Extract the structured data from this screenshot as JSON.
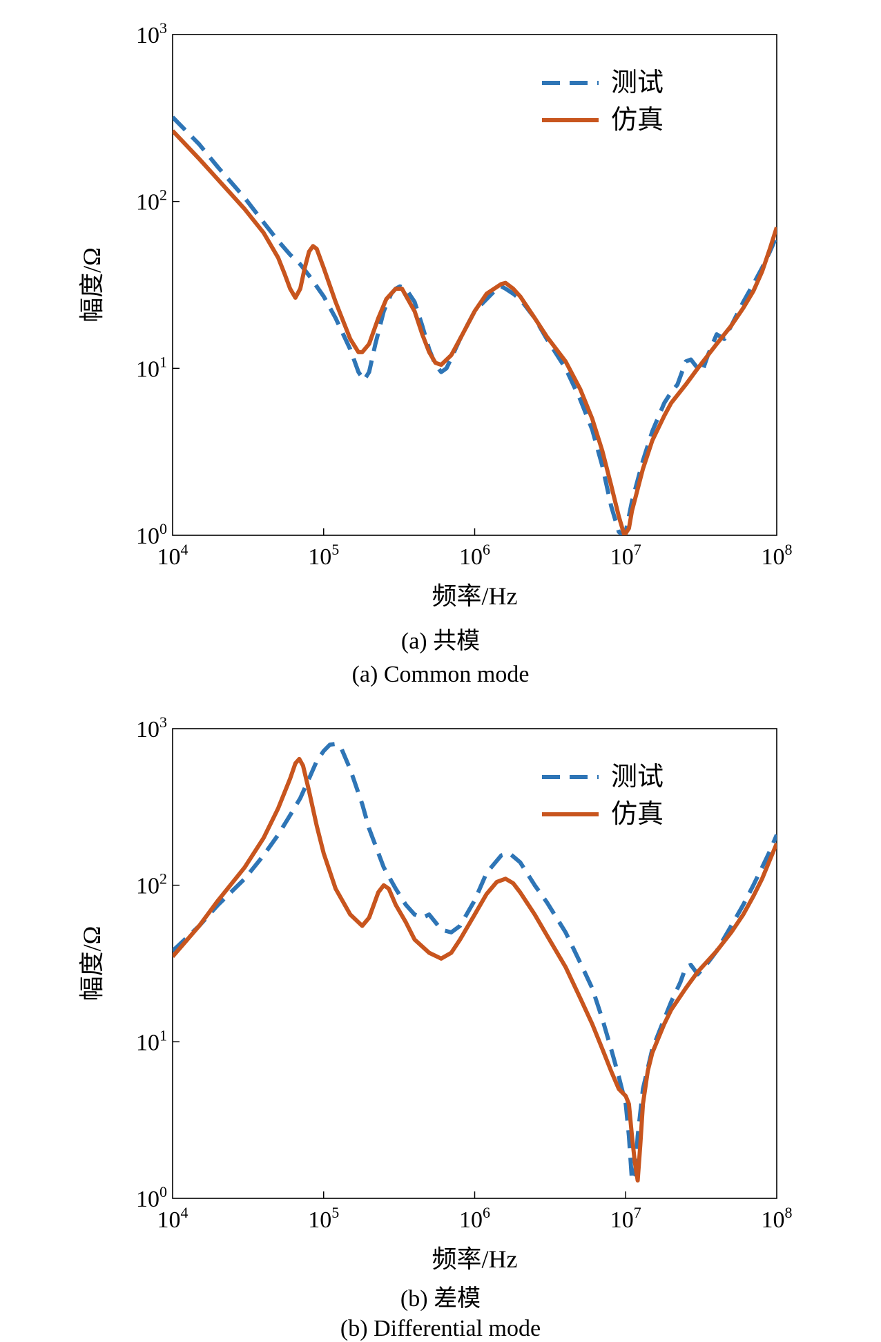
{
  "figure": {
    "panels": [
      {
        "caption_cn": "(a) 共模",
        "caption_en": "(a) Common mode"
      },
      {
        "caption_cn": "(b) 差模",
        "caption_en": "(b) Differential mode"
      }
    ]
  },
  "chart_data": [
    {
      "type": "line",
      "title": "",
      "xlabel": "频率/Hz",
      "ylabel": "幅度/Ω",
      "xscale": "log",
      "yscale": "log",
      "xlim": [
        10000,
        100000000
      ],
      "ylim": [
        1,
        1000
      ],
      "x_ticks": [
        {
          "base": "10",
          "exp": "4"
        },
        {
          "base": "10",
          "exp": "5"
        },
        {
          "base": "10",
          "exp": "6"
        },
        {
          "base": "10",
          "exp": "7"
        },
        {
          "base": "10",
          "exp": "8"
        }
      ],
      "y_ticks": [
        {
          "base": "10",
          "exp": "0"
        },
        {
          "base": "10",
          "exp": "1"
        },
        {
          "base": "10",
          "exp": "2"
        },
        {
          "base": "10",
          "exp": "3"
        }
      ],
      "grid": false,
      "legend_position": "top-right",
      "series": [
        {
          "name": "测试",
          "color": "#2e75b6",
          "style": "dashed",
          "points": [
            [
              10000,
              320
            ],
            [
              15000,
              220
            ],
            [
              20000,
              160
            ],
            [
              30000,
              105
            ],
            [
              40000,
              75
            ],
            [
              50000,
              58
            ],
            [
              60000,
              48
            ],
            [
              70000,
              42
            ],
            [
              80000,
              36
            ],
            [
              100000,
              27
            ],
            [
              120000,
              20
            ],
            [
              150000,
              13
            ],
            [
              170000,
              9.5
            ],
            [
              185000,
              8.5
            ],
            [
              200000,
              9.5
            ],
            [
              220000,
              14
            ],
            [
              250000,
              22
            ],
            [
              280000,
              28
            ],
            [
              300000,
              30
            ],
            [
              320000,
              31
            ],
            [
              350000,
              30
            ],
            [
              400000,
              25
            ],
            [
              450000,
              18
            ],
            [
              500000,
              13
            ],
            [
              550000,
              10.5
            ],
            [
              600000,
              9.5
            ],
            [
              650000,
              10
            ],
            [
              700000,
              11.5
            ],
            [
              800000,
              15
            ],
            [
              1000000,
              22
            ],
            [
              1200000,
              26
            ],
            [
              1400000,
              30
            ],
            [
              1500000,
              31
            ],
            [
              1600000,
              30
            ],
            [
              1800000,
              28
            ],
            [
              2000000,
              26
            ],
            [
              2500000,
              20
            ],
            [
              3000000,
              15
            ],
            [
              4000000,
              10
            ],
            [
              5000000,
              6.5
            ],
            [
              6000000,
              4.3
            ],
            [
              7000000,
              2.6
            ],
            [
              8000000,
              1.5
            ],
            [
              9000000,
              1.05
            ],
            [
              9600000,
              1.0
            ],
            [
              10000000,
              1.05
            ],
            [
              11000000,
              1.6
            ],
            [
              13000000,
              2.8
            ],
            [
              15000000,
              4.2
            ],
            [
              18000000,
              6.2
            ],
            [
              20000000,
              7.2
            ],
            [
              22000000,
              8
            ],
            [
              25000000,
              11
            ],
            [
              27000000,
              11.3
            ],
            [
              30000000,
              10
            ],
            [
              32000000,
              9.5
            ],
            [
              35000000,
              12
            ],
            [
              40000000,
              16
            ],
            [
              45000000,
              15
            ],
            [
              50000000,
              18
            ],
            [
              60000000,
              25
            ],
            [
              70000000,
              32
            ],
            [
              80000000,
              40
            ],
            [
              90000000,
              50
            ],
            [
              100000000,
              62
            ]
          ]
        },
        {
          "name": "仿真",
          "color": "#c8551e",
          "style": "solid",
          "points": [
            [
              10000,
              265
            ],
            [
              15000,
              180
            ],
            [
              20000,
              135
            ],
            [
              30000,
              90
            ],
            [
              40000,
              65
            ],
            [
              50000,
              46
            ],
            [
              55000,
              37
            ],
            [
              60000,
              30
            ],
            [
              65000,
              26.5
            ],
            [
              70000,
              30
            ],
            [
              75000,
              40
            ],
            [
              80000,
              50
            ],
            [
              85000,
              54
            ],
            [
              90000,
              52
            ],
            [
              100000,
              40
            ],
            [
              120000,
              25
            ],
            [
              150000,
              15
            ],
            [
              170000,
              12.5
            ],
            [
              180000,
              12.5
            ],
            [
              200000,
              14
            ],
            [
              230000,
              20
            ],
            [
              260000,
              26
            ],
            [
              300000,
              30
            ],
            [
              330000,
              30
            ],
            [
              400000,
              22
            ],
            [
              450000,
              16
            ],
            [
              500000,
              12.5
            ],
            [
              550000,
              10.8
            ],
            [
              600000,
              10.5
            ],
            [
              700000,
              12
            ],
            [
              800000,
              15
            ],
            [
              1000000,
              22
            ],
            [
              1200000,
              28
            ],
            [
              1500000,
              32
            ],
            [
              1600000,
              32.5
            ],
            [
              1800000,
              30
            ],
            [
              2000000,
              27
            ],
            [
              2500000,
              20
            ],
            [
              3000000,
              15.5
            ],
            [
              4000000,
              11
            ],
            [
              5000000,
              7.5
            ],
            [
              6000000,
              5
            ],
            [
              7000000,
              3.2
            ],
            [
              8000000,
              2
            ],
            [
              9000000,
              1.3
            ],
            [
              9800000,
              1.0
            ],
            [
              10500000,
              1.1
            ],
            [
              11000000,
              1.4
            ],
            [
              13000000,
              2.5
            ],
            [
              15000000,
              3.7
            ],
            [
              18000000,
              5.2
            ],
            [
              20000000,
              6.2
            ],
            [
              25000000,
              8
            ],
            [
              30000000,
              10
            ],
            [
              40000000,
              14
            ],
            [
              50000000,
              18
            ],
            [
              60000000,
              23
            ],
            [
              70000000,
              29
            ],
            [
              80000000,
              38
            ],
            [
              90000000,
              52
            ],
            [
              100000000,
              70
            ]
          ]
        }
      ]
    },
    {
      "type": "line",
      "title": "",
      "xlabel": "频率/Hz",
      "ylabel": "幅度/Ω",
      "xscale": "log",
      "yscale": "log",
      "xlim": [
        10000,
        100000000
      ],
      "ylim": [
        1,
        1000
      ],
      "x_ticks": [
        {
          "base": "10",
          "exp": "4"
        },
        {
          "base": "10",
          "exp": "5"
        },
        {
          "base": "10",
          "exp": "6"
        },
        {
          "base": "10",
          "exp": "7"
        },
        {
          "base": "10",
          "exp": "8"
        }
      ],
      "y_ticks": [
        {
          "base": "10",
          "exp": "0"
        },
        {
          "base": "10",
          "exp": "1"
        },
        {
          "base": "10",
          "exp": "2"
        },
        {
          "base": "10",
          "exp": "3"
        }
      ],
      "grid": false,
      "legend_position": "top-right",
      "series": [
        {
          "name": "测试",
          "color": "#2e75b6",
          "style": "dashed",
          "points": [
            [
              10000,
              38
            ],
            [
              15000,
              55
            ],
            [
              20000,
              75
            ],
            [
              30000,
              110
            ],
            [
              40000,
              155
            ],
            [
              50000,
              210
            ],
            [
              60000,
              280
            ],
            [
              70000,
              360
            ],
            [
              80000,
              480
            ],
            [
              90000,
              620
            ],
            [
              100000,
              720
            ],
            [
              110000,
              790
            ],
            [
              120000,
              800
            ],
            [
              130000,
              760
            ],
            [
              150000,
              550
            ],
            [
              180000,
              330
            ],
            [
              200000,
              230
            ],
            [
              250000,
              130
            ],
            [
              300000,
              95
            ],
            [
              350000,
              75
            ],
            [
              400000,
              65
            ],
            [
              450000,
              62
            ],
            [
              500000,
              65
            ],
            [
              550000,
              58
            ],
            [
              600000,
              52
            ],
            [
              700000,
              50
            ],
            [
              800000,
              55
            ],
            [
              1000000,
              80
            ],
            [
              1200000,
              120
            ],
            [
              1500000,
              155
            ],
            [
              1700000,
              160
            ],
            [
              2000000,
              140
            ],
            [
              2500000,
              100
            ],
            [
              3000000,
              78
            ],
            [
              4000000,
              50
            ],
            [
              5000000,
              32
            ],
            [
              6000000,
              22
            ],
            [
              7000000,
              14
            ],
            [
              8000000,
              9
            ],
            [
              9000000,
              6
            ],
            [
              10000000,
              4
            ],
            [
              10500000,
              2.5
            ],
            [
              11000000,
              1.3
            ],
            [
              11500000,
              1.4
            ],
            [
              12000000,
              2.5
            ],
            [
              13000000,
              5
            ],
            [
              15000000,
              9
            ],
            [
              18000000,
              14
            ],
            [
              20000000,
              18
            ],
            [
              23000000,
              24
            ],
            [
              25000000,
              30
            ],
            [
              27000000,
              31
            ],
            [
              30000000,
              27
            ],
            [
              35000000,
              32
            ],
            [
              40000000,
              38
            ],
            [
              50000000,
              55
            ],
            [
              60000000,
              75
            ],
            [
              70000000,
              100
            ],
            [
              80000000,
              130
            ],
            [
              90000000,
              165
            ],
            [
              100000000,
              210
            ]
          ]
        },
        {
          "name": "仿真",
          "color": "#c8551e",
          "style": "solid",
          "points": [
            [
              10000,
              35
            ],
            [
              15000,
              55
            ],
            [
              20000,
              80
            ],
            [
              30000,
              130
            ],
            [
              40000,
              200
            ],
            [
              50000,
              310
            ],
            [
              60000,
              480
            ],
            [
              65000,
              600
            ],
            [
              69000,
              640
            ],
            [
              73000,
              580
            ],
            [
              80000,
              400
            ],
            [
              90000,
              240
            ],
            [
              100000,
              160
            ],
            [
              120000,
              95
            ],
            [
              150000,
              65
            ],
            [
              180000,
              55
            ],
            [
              200000,
              62
            ],
            [
              230000,
              90
            ],
            [
              250000,
              100
            ],
            [
              270000,
              95
            ],
            [
              300000,
              75
            ],
            [
              350000,
              58
            ],
            [
              400000,
              45
            ],
            [
              500000,
              37
            ],
            [
              600000,
              34
            ],
            [
              700000,
              37
            ],
            [
              800000,
              45
            ],
            [
              1000000,
              65
            ],
            [
              1200000,
              88
            ],
            [
              1400000,
              105
            ],
            [
              1600000,
              110
            ],
            [
              1800000,
              103
            ],
            [
              2000000,
              90
            ],
            [
              2500000,
              65
            ],
            [
              3000000,
              48
            ],
            [
              4000000,
              30
            ],
            [
              5000000,
              19
            ],
            [
              6000000,
              13
            ],
            [
              7000000,
              9
            ],
            [
              8000000,
              6.5
            ],
            [
              9000000,
              5
            ],
            [
              10000000,
              4.5
            ],
            [
              10500000,
              4
            ],
            [
              11000000,
              2.5
            ],
            [
              11500000,
              1.7
            ],
            [
              12000000,
              1.3
            ],
            [
              12500000,
              2.2
            ],
            [
              13000000,
              4
            ],
            [
              14000000,
              6.5
            ],
            [
              15000000,
              8.5
            ],
            [
              18000000,
              13
            ],
            [
              20000000,
              16
            ],
            [
              25000000,
              22
            ],
            [
              30000000,
              28
            ],
            [
              40000000,
              38
            ],
            [
              50000000,
              50
            ],
            [
              60000000,
              65
            ],
            [
              70000000,
              85
            ],
            [
              80000000,
              110
            ],
            [
              90000000,
              145
            ],
            [
              100000000,
              185
            ]
          ]
        }
      ]
    }
  ]
}
